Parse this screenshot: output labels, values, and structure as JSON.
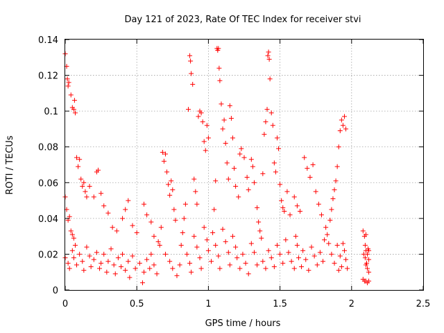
{
  "chart_data": {
    "type": "scatter",
    "title": "Day 121 of 2023, Rate Of TEC Index for receiver stvi",
    "xlabel": "GPS time / hours",
    "ylabel": "ROTI / TECUs",
    "xlim": [
      0,
      2.5
    ],
    "ylim": [
      0,
      0.14
    ],
    "xticks": [
      0,
      0.5,
      1,
      1.5,
      2,
      2.5
    ],
    "xtick_labels": [
      "0",
      "0.5",
      "1",
      "1.5",
      "2",
      "2.5"
    ],
    "yticks": [
      0,
      0.02,
      0.04,
      0.06,
      0.08,
      0.1,
      0.12,
      0.14
    ],
    "ytick_labels": [
      "0",
      "0.02",
      "0.04",
      "0.06",
      "0.08",
      "0.1",
      "0.12",
      "0.14"
    ],
    "grid": true,
    "marker": "+",
    "color": "#ff0000",
    "series": [
      {
        "points": [
          [
            0.0,
            0.132
          ],
          [
            0.01,
            0.125
          ],
          [
            0.015,
            0.118
          ],
          [
            0.02,
            0.114
          ],
          [
            0.025,
            0.116
          ],
          [
            0.04,
            0.109
          ],
          [
            0.05,
            0.102
          ],
          [
            0.06,
            0.101
          ],
          [
            0.065,
            0.106
          ],
          [
            0.07,
            0.099
          ],
          [
            0.0,
            0.052
          ],
          [
            0.01,
            0.045
          ],
          [
            0.02,
            0.039
          ],
          [
            0.03,
            0.041
          ],
          [
            0.04,
            0.033
          ],
          [
            0.05,
            0.031
          ],
          [
            0.06,
            0.029
          ],
          [
            0.07,
            0.025
          ],
          [
            0.08,
            0.074
          ],
          [
            0.09,
            0.069
          ],
          [
            0.1,
            0.073
          ],
          [
            0.11,
            0.062
          ],
          [
            0.12,
            0.058
          ],
          [
            0.13,
            0.06
          ],
          [
            0.14,
            0.055
          ],
          [
            0.15,
            0.052
          ],
          [
            0.17,
            0.058
          ],
          [
            0.2,
            0.052
          ],
          [
            0.22,
            0.066
          ],
          [
            0.23,
            0.067
          ],
          [
            0.25,
            0.054
          ],
          [
            0.27,
            0.047
          ],
          [
            0.3,
            0.043
          ],
          [
            0.33,
            0.035
          ],
          [
            0.36,
            0.033
          ],
          [
            0.4,
            0.04
          ],
          [
            0.42,
            0.045
          ],
          [
            0.44,
            0.05
          ],
          [
            0.47,
            0.036
          ],
          [
            0.5,
            0.032
          ],
          [
            0.0,
            0.018
          ],
          [
            0.02,
            0.015
          ],
          [
            0.03,
            0.012
          ],
          [
            0.05,
            0.022
          ],
          [
            0.06,
            0.018
          ],
          [
            0.08,
            0.014
          ],
          [
            0.1,
            0.02
          ],
          [
            0.12,
            0.016
          ],
          [
            0.13,
            0.011
          ],
          [
            0.15,
            0.024
          ],
          [
            0.17,
            0.019
          ],
          [
            0.18,
            0.013
          ],
          [
            0.2,
            0.017
          ],
          [
            0.22,
            0.021
          ],
          [
            0.24,
            0.012
          ],
          [
            0.25,
            0.015
          ],
          [
            0.27,
            0.02
          ],
          [
            0.29,
            0.01
          ],
          [
            0.3,
            0.016
          ],
          [
            0.32,
            0.023
          ],
          [
            0.34,
            0.014
          ],
          [
            0.35,
            0.009
          ],
          [
            0.37,
            0.018
          ],
          [
            0.39,
            0.013
          ],
          [
            0.4,
            0.02
          ],
          [
            0.42,
            0.011
          ],
          [
            0.44,
            0.016
          ],
          [
            0.45,
            0.007
          ],
          [
            0.47,
            0.019
          ],
          [
            0.49,
            0.012
          ],
          [
            0.52,
            0.015
          ],
          [
            0.54,
            0.004
          ],
          [
            0.55,
            0.01
          ],
          [
            0.57,
            0.017
          ],
          [
            0.59,
            0.012
          ],
          [
            0.6,
            0.02
          ],
          [
            0.62,
            0.014
          ],
          [
            0.64,
            0.009
          ],
          [
            0.65,
            0.027
          ],
          [
            0.67,
            0.035
          ],
          [
            0.68,
            0.077
          ],
          [
            0.69,
            0.072
          ],
          [
            0.7,
            0.076
          ],
          [
            0.71,
            0.066
          ],
          [
            0.72,
            0.059
          ],
          [
            0.73,
            0.053
          ],
          [
            0.74,
            0.061
          ],
          [
            0.75,
            0.056
          ],
          [
            0.76,
            0.045
          ],
          [
            0.77,
            0.039
          ],
          [
            0.55,
            0.048
          ],
          [
            0.57,
            0.042
          ],
          [
            0.6,
            0.038
          ],
          [
            0.62,
            0.03
          ],
          [
            0.66,
            0.025
          ],
          [
            0.7,
            0.02
          ],
          [
            0.73,
            0.016
          ],
          [
            0.75,
            0.012
          ],
          [
            0.78,
            0.008
          ],
          [
            0.8,
            0.014
          ],
          [
            0.81,
            0.025
          ],
          [
            0.82,
            0.032
          ],
          [
            0.83,
            0.04
          ],
          [
            0.84,
            0.048
          ],
          [
            0.86,
            0.101
          ],
          [
            0.87,
            0.131
          ],
          [
            0.875,
            0.128
          ],
          [
            0.88,
            0.121
          ],
          [
            0.89,
            0.115
          ],
          [
            0.9,
            0.062
          ],
          [
            0.91,
            0.055
          ],
          [
            0.92,
            0.048
          ],
          [
            0.93,
            0.097
          ],
          [
            0.94,
            0.1
          ],
          [
            0.95,
            0.099
          ],
          [
            0.96,
            0.094
          ],
          [
            0.97,
            0.083
          ],
          [
            0.98,
            0.078
          ],
          [
            0.99,
            0.092
          ],
          [
            1.0,
            0.085
          ],
          [
            0.85,
            0.02
          ],
          [
            0.87,
            0.015
          ],
          [
            0.88,
            0.01
          ],
          [
            0.9,
            0.03
          ],
          [
            0.92,
            0.024
          ],
          [
            0.94,
            0.018
          ],
          [
            0.95,
            0.012
          ],
          [
            0.97,
            0.035
          ],
          [
            0.99,
            0.028
          ],
          [
            1.0,
            0.022
          ],
          [
            1.02,
            0.016
          ],
          [
            1.03,
            0.032
          ],
          [
            1.04,
            0.045
          ],
          [
            1.05,
            0.061
          ],
          [
            1.06,
            0.135
          ],
          [
            1.065,
            0.134
          ],
          [
            1.07,
            0.135
          ],
          [
            1.075,
            0.124
          ],
          [
            1.08,
            0.117
          ],
          [
            1.09,
            0.104
          ],
          [
            1.1,
            0.09
          ],
          [
            1.11,
            0.095
          ],
          [
            1.12,
            0.082
          ],
          [
            1.13,
            0.071
          ],
          [
            1.14,
            0.062
          ],
          [
            1.15,
            0.103
          ],
          [
            1.16,
            0.096
          ],
          [
            1.17,
            0.085
          ],
          [
            1.18,
            0.068
          ],
          [
            1.19,
            0.058
          ],
          [
            1.05,
            0.025
          ],
          [
            1.07,
            0.019
          ],
          [
            1.08,
            0.012
          ],
          [
            1.1,
            0.034
          ],
          [
            1.12,
            0.027
          ],
          [
            1.14,
            0.021
          ],
          [
            1.15,
            0.014
          ],
          [
            1.17,
            0.03
          ],
          [
            1.19,
            0.024
          ],
          [
            1.2,
            0.018
          ],
          [
            1.21,
            0.052
          ],
          [
            1.22,
            0.076
          ],
          [
            1.23,
            0.079
          ],
          [
            1.25,
            0.074
          ],
          [
            1.27,
            0.063
          ],
          [
            1.28,
            0.056
          ],
          [
            1.3,
            0.073
          ],
          [
            1.31,
            0.069
          ],
          [
            1.32,
            0.06
          ],
          [
            1.34,
            0.046
          ],
          [
            1.22,
            0.012
          ],
          [
            1.24,
            0.02
          ],
          [
            1.26,
            0.015
          ],
          [
            1.28,
            0.009
          ],
          [
            1.3,
            0.026
          ],
          [
            1.32,
            0.021
          ],
          [
            1.34,
            0.014
          ],
          [
            1.35,
            0.038
          ],
          [
            1.36,
            0.033
          ],
          [
            1.37,
            0.029
          ],
          [
            1.38,
            0.065
          ],
          [
            1.39,
            0.087
          ],
          [
            1.4,
            0.094
          ],
          [
            1.41,
            0.101
          ],
          [
            1.415,
            0.131
          ],
          [
            1.42,
            0.133
          ],
          [
            1.425,
            0.129
          ],
          [
            1.43,
            0.118
          ],
          [
            1.44,
            0.099
          ],
          [
            1.45,
            0.092
          ],
          [
            1.46,
            0.071
          ],
          [
            1.47,
            0.066
          ],
          [
            1.48,
            0.085
          ],
          [
            1.49,
            0.079
          ],
          [
            1.5,
            0.059
          ],
          [
            1.51,
            0.05
          ],
          [
            1.52,
            0.046
          ],
          [
            1.53,
            0.044
          ],
          [
            1.55,
            0.055
          ],
          [
            1.57,
            0.042
          ],
          [
            1.38,
            0.016
          ],
          [
            1.4,
            0.012
          ],
          [
            1.42,
            0.022
          ],
          [
            1.44,
            0.018
          ],
          [
            1.46,
            0.013
          ],
          [
            1.48,
            0.025
          ],
          [
            1.5,
            0.02
          ],
          [
            1.52,
            0.015
          ],
          [
            1.54,
            0.028
          ],
          [
            1.56,
            0.021
          ],
          [
            1.58,
            0.016
          ],
          [
            1.6,
            0.012
          ],
          [
            1.61,
            0.03
          ],
          [
            1.62,
            0.025
          ],
          [
            1.63,
            0.018
          ],
          [
            1.65,
            0.013
          ],
          [
            1.66,
            0.022
          ],
          [
            1.68,
            0.017
          ],
          [
            1.7,
            0.011
          ],
          [
            1.72,
            0.024
          ],
          [
            1.6,
            0.052
          ],
          [
            1.62,
            0.047
          ],
          [
            1.64,
            0.044
          ],
          [
            1.67,
            0.074
          ],
          [
            1.69,
            0.068
          ],
          [
            1.71,
            0.063
          ],
          [
            1.73,
            0.07
          ],
          [
            1.75,
            0.055
          ],
          [
            1.77,
            0.048
          ],
          [
            1.79,
            0.042
          ],
          [
            1.74,
            0.019
          ],
          [
            1.76,
            0.014
          ],
          [
            1.78,
            0.021
          ],
          [
            1.8,
            0.016
          ],
          [
            1.81,
            0.028
          ],
          [
            1.82,
            0.035
          ],
          [
            1.83,
            0.031
          ],
          [
            1.84,
            0.026
          ],
          [
            1.85,
            0.039
          ],
          [
            1.86,
            0.045
          ],
          [
            1.87,
            0.051
          ],
          [
            1.88,
            0.056
          ],
          [
            1.89,
            0.061
          ],
          [
            1.9,
            0.069
          ],
          [
            1.91,
            0.08
          ],
          [
            1.92,
            0.089
          ],
          [
            1.93,
            0.095
          ],
          [
            1.94,
            0.092
          ],
          [
            1.95,
            0.097
          ],
          [
            1.96,
            0.09
          ],
          [
            1.86,
            0.02
          ],
          [
            1.88,
            0.015
          ],
          [
            1.9,
            0.025
          ],
          [
            1.92,
            0.019
          ],
          [
            1.93,
            0.013
          ],
          [
            1.95,
            0.022
          ],
          [
            1.96,
            0.017
          ],
          [
            1.97,
            0.012
          ],
          [
            1.94,
            0.026
          ],
          [
            1.91,
            0.011
          ],
          [
            2.08,
            0.033
          ],
          [
            2.09,
            0.03
          ],
          [
            2.1,
            0.031
          ],
          [
            2.095,
            0.025
          ],
          [
            2.1,
            0.022
          ],
          [
            2.11,
            0.02
          ],
          [
            2.12,
            0.017
          ],
          [
            2.1,
            0.014
          ],
          [
            2.11,
            0.012
          ],
          [
            2.12,
            0.01
          ],
          [
            2.08,
            0.006
          ],
          [
            2.09,
            0.005
          ],
          [
            2.1,
            0.005
          ],
          [
            2.11,
            0.004
          ],
          [
            2.12,
            0.005
          ],
          [
            2.095,
            0.018
          ],
          [
            2.105,
            0.015
          ],
          [
            2.115,
            0.023
          ],
          [
            2.085,
            0.02
          ],
          [
            2.12,
            0.022
          ]
        ]
      }
    ]
  }
}
